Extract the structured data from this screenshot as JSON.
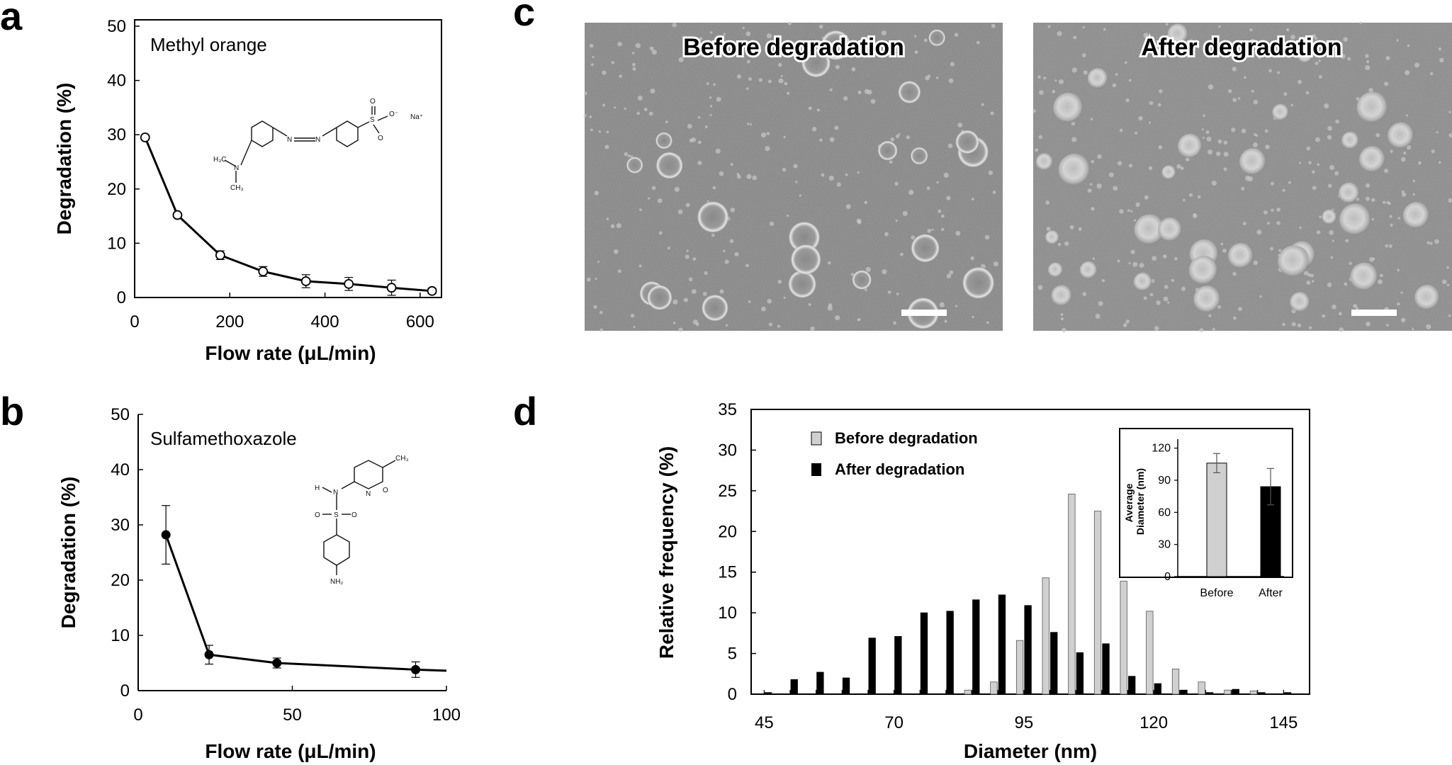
{
  "panel_labels": {
    "a": "a",
    "b": "b",
    "c": "c",
    "d": "d"
  },
  "chart_data": [
    {
      "id": "a",
      "type": "line",
      "title": "Methyl orange",
      "xlabel": "Flow rate (μL/min)",
      "ylabel": "Degradation (%)",
      "xlim": [
        0,
        630
      ],
      "ylim": [
        0,
        50
      ],
      "xticks": [
        "0",
        "200",
        "400",
        "600"
      ],
      "yticks": [
        "0",
        "10",
        "20",
        "30",
        "40",
        "50"
      ],
      "marker": "open-circle",
      "x": [
        22,
        90,
        180,
        270,
        360,
        450,
        540,
        625
      ],
      "y": [
        29.5,
        15.2,
        7.8,
        4.8,
        3.0,
        2.5,
        1.8,
        1.2
      ],
      "yerr": [
        0.4,
        0.4,
        0.8,
        0.9,
        1.2,
        1.2,
        1.4,
        0.5
      ],
      "structure_labels": [
        "H₃C",
        "N",
        "CH₃",
        "N",
        "N",
        "S",
        "O",
        "O",
        "O⁻",
        "Na⁺"
      ]
    },
    {
      "id": "b",
      "type": "line",
      "title": "Sulfamethoxazole",
      "xlabel": "Flow rate (μL/min)",
      "ylabel": "Degradation (%)",
      "xlim": [
        0,
        100
      ],
      "ylim": [
        0,
        50
      ],
      "xticks": [
        "0",
        "50",
        "100"
      ],
      "yticks": [
        "0",
        "10",
        "20",
        "30",
        "40",
        "50"
      ],
      "marker": "filled-circle",
      "x": [
        9,
        23,
        45,
        90,
        100
      ],
      "y": [
        28.2,
        6.5,
        5.0,
        3.8,
        3.6
      ],
      "yerr": [
        5.3,
        1.7,
        0.9,
        1.4,
        0
      ],
      "structure_labels": [
        "CH₃",
        "H",
        "N",
        "N",
        "O",
        "S",
        "O",
        "O",
        "NH₂"
      ]
    },
    {
      "id": "d",
      "type": "bar",
      "xlabel": "Diameter (nm)",
      "ylabel": "Relative frequency (%)",
      "xlim": [
        42.5,
        150
      ],
      "ylim": [
        0,
        35
      ],
      "xticks": [
        "45",
        "70",
        "95",
        "120",
        "145"
      ],
      "yticks": [
        "0",
        "5",
        "10",
        "15",
        "20",
        "25",
        "30",
        "35"
      ],
      "categories": [
        45,
        50,
        55,
        60,
        65,
        70,
        75,
        80,
        85,
        90,
        95,
        100,
        105,
        110,
        115,
        120,
        125,
        130,
        135,
        140,
        145
      ],
      "series": [
        {
          "name": "Before degradation",
          "color": "#d0d0d0",
          "values": [
            0,
            0,
            0,
            0,
            0,
            0,
            0,
            0,
            0.5,
            1.5,
            6.6,
            14.3,
            24.6,
            22.5,
            13.9,
            10.2,
            3.1,
            1.5,
            0.5,
            0.4,
            0
          ]
        },
        {
          "name": "After degradation",
          "color": "#000000",
          "values": [
            0.2,
            1.8,
            2.7,
            2.0,
            6.9,
            7.1,
            10.0,
            10.2,
            11.6,
            12.2,
            10.9,
            7.6,
            5.1,
            6.2,
            2.2,
            1.3,
            0.5,
            0.2,
            0.6,
            0.2,
            0.2
          ]
        }
      ],
      "legend": "top-left",
      "inset": {
        "type": "bar",
        "ylabel": "Average Diameter (nm)",
        "ylim": [
          0,
          135
        ],
        "yticks": [
          "0",
          "30",
          "60",
          "90",
          "120"
        ],
        "categories": [
          "Before",
          "After"
        ],
        "values": [
          106,
          84
        ],
        "yerr": [
          9,
          17
        ],
        "colors": [
          "#d0d0d0",
          "#000000"
        ]
      }
    }
  ],
  "sem_images": [
    {
      "id": "c-before",
      "title": "Before degradation"
    },
    {
      "id": "c-after",
      "title": "After degradation"
    }
  ]
}
